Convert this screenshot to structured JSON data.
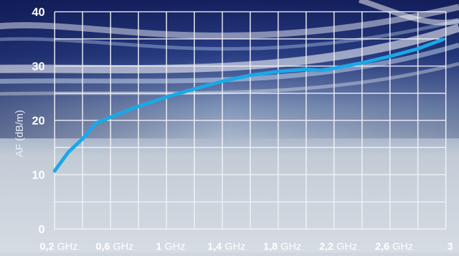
{
  "chart_data": {
    "type": "line",
    "title": "",
    "xlabel": "",
    "ylabel": "AF (dB/m)",
    "xlim": [
      0.2,
      3.0
    ],
    "ylim": [
      0,
      40
    ],
    "grid": true,
    "legend": "none",
    "y_ticks": [
      {
        "value": 0,
        "label": "0"
      },
      {
        "value": 10,
        "label": "10"
      },
      {
        "value": 20,
        "label": "20"
      },
      {
        "value": 30,
        "label": "30"
      },
      {
        "value": 40,
        "label": "40"
      }
    ],
    "x_ticks": [
      {
        "value": 0.2,
        "num": "0,2",
        "unit": "GHz"
      },
      {
        "value": 0.6,
        "num": "0,6",
        "unit": "GHz"
      },
      {
        "value": 1.0,
        "num": "1",
        "unit": "GHz"
      },
      {
        "value": 1.4,
        "num": "1,4",
        "unit": "GHz"
      },
      {
        "value": 1.8,
        "num": "1,8",
        "unit": "GHz"
      },
      {
        "value": 2.2,
        "num": "2,2",
        "unit": "GHz"
      },
      {
        "value": 2.6,
        "num": "2,6",
        "unit": "GHz"
      },
      {
        "value": 3.0,
        "num": "3",
        "unit": ""
      }
    ],
    "series": [
      {
        "x": [
          0.2,
          0.3,
          0.4,
          0.5,
          0.55,
          0.6,
          0.7,
          0.8,
          0.9,
          1.0,
          1.2,
          1.4,
          1.6,
          1.8,
          2.0,
          2.1,
          2.2,
          2.4,
          2.6,
          2.8,
          2.98
        ],
        "y": [
          10.7,
          14.2,
          16.6,
          19.6,
          20.0,
          20.6,
          21.6,
          22.6,
          23.4,
          24.3,
          25.8,
          27.2,
          28.3,
          29.0,
          29.4,
          29.2,
          29.6,
          30.6,
          31.8,
          33.2,
          34.9
        ]
      }
    ],
    "colors": {
      "line": "#1aa8e8",
      "grid": "#f2f4f7",
      "tick_label": "#ffffff",
      "axis_label": "#e8eef5"
    }
  }
}
